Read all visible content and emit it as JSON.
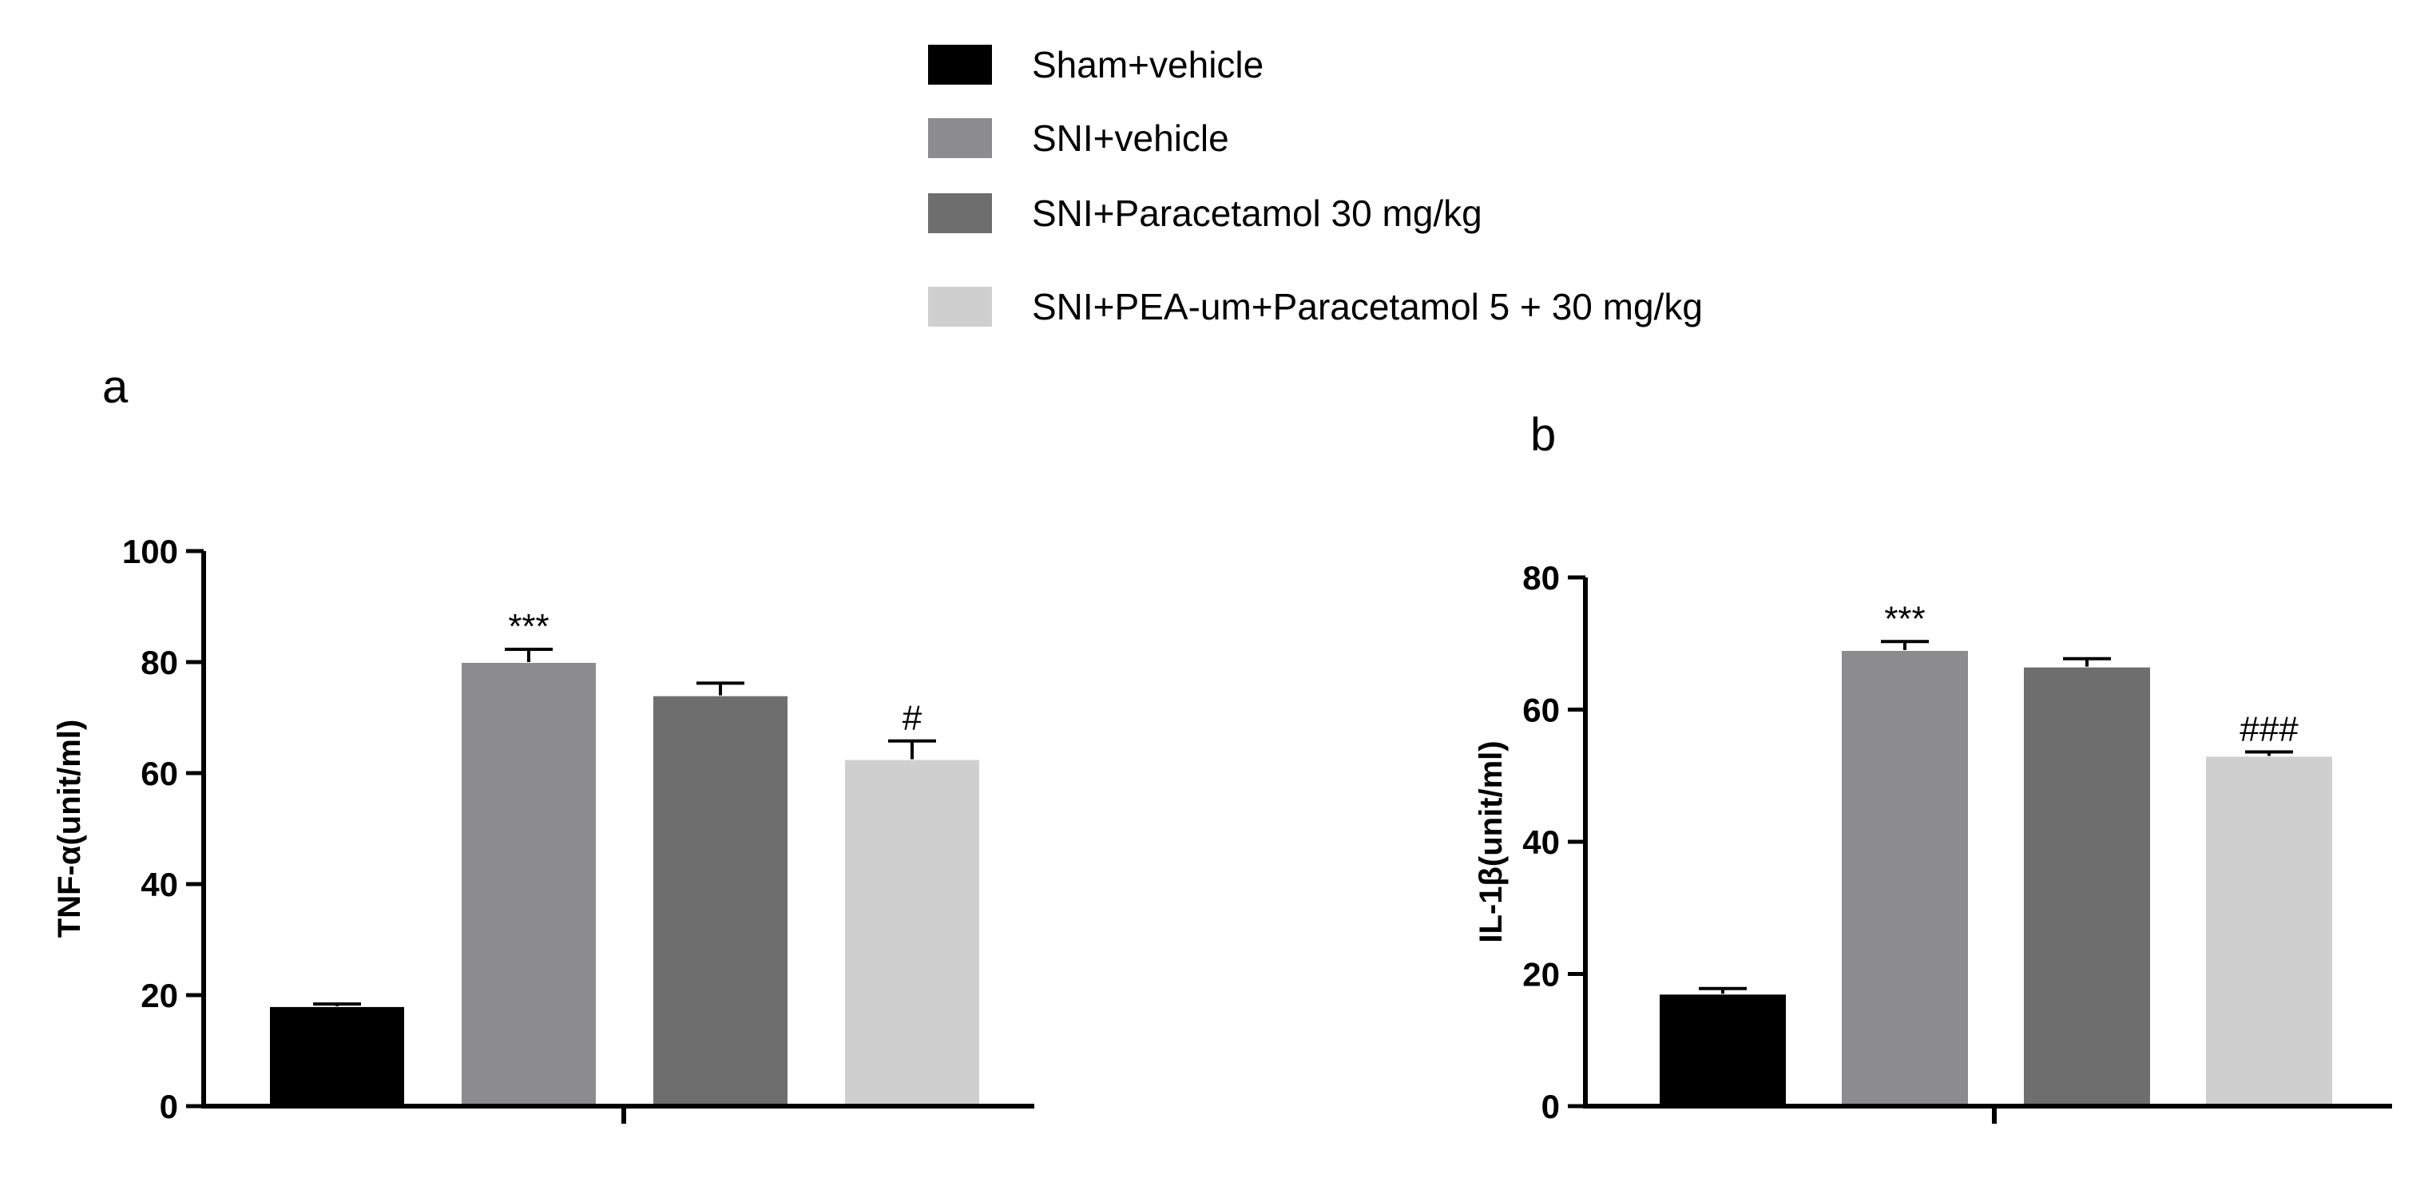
{
  "panels": {
    "a": "a",
    "b": "b"
  },
  "legend": [
    {
      "label": "Sham+vehicle",
      "color": "#000000"
    },
    {
      "label": "SNI+vehicle",
      "color": "#8c8c8f"
    },
    {
      "label": "SNI+Paracetamol 30 mg/kg",
      "color": "#6e6e6e"
    },
    {
      "label": "SNI+PEA-um+Paracetamol 5 + 30 mg/kg",
      "color": "#cfcfcf"
    }
  ],
  "chart_data": [
    {
      "type": "bar",
      "panel": "a",
      "categories": [
        "Sham+vehicle",
        "SNI+vehicle",
        "SNI+Paracetamol 30 mg/kg",
        "SNI+PEA-um+Paracetamol 5 + 30 mg/kg"
      ],
      "values": [
        18,
        80,
        74,
        62.5
      ],
      "errors": [
        0.4,
        2.3,
        2.2,
        3.3
      ],
      "annotations": [
        "",
        "***",
        "",
        "#"
      ],
      "ylabel": "TNF-α(unit/ml)",
      "ylim": [
        0,
        100
      ],
      "yticks": [
        0,
        20,
        40,
        60,
        80,
        100
      ],
      "colors": [
        "#000000",
        "#8c8c8f",
        "#6e6e6e",
        "#cfcfcf"
      ]
    },
    {
      "type": "bar",
      "panel": "b",
      "categories": [
        "Sham+vehicle",
        "SNI+vehicle",
        "SNI+Paracetamol 30 mg/kg",
        "SNI+PEA-um+Paracetamol 5 + 30 mg/kg"
      ],
      "values": [
        17,
        69,
        66.5,
        53
      ],
      "errors": [
        0.8,
        1.3,
        1.2,
        0.6
      ],
      "annotations": [
        "",
        "***",
        "",
        "###"
      ],
      "ylabel": "IL-1β(unit/ml)",
      "ylim": [
        0,
        80
      ],
      "yticks": [
        0,
        20,
        40,
        60,
        80
      ],
      "colors": [
        "#000000",
        "#8c8c8f",
        "#6e6e6e",
        "#cfcfcf"
      ]
    }
  ]
}
